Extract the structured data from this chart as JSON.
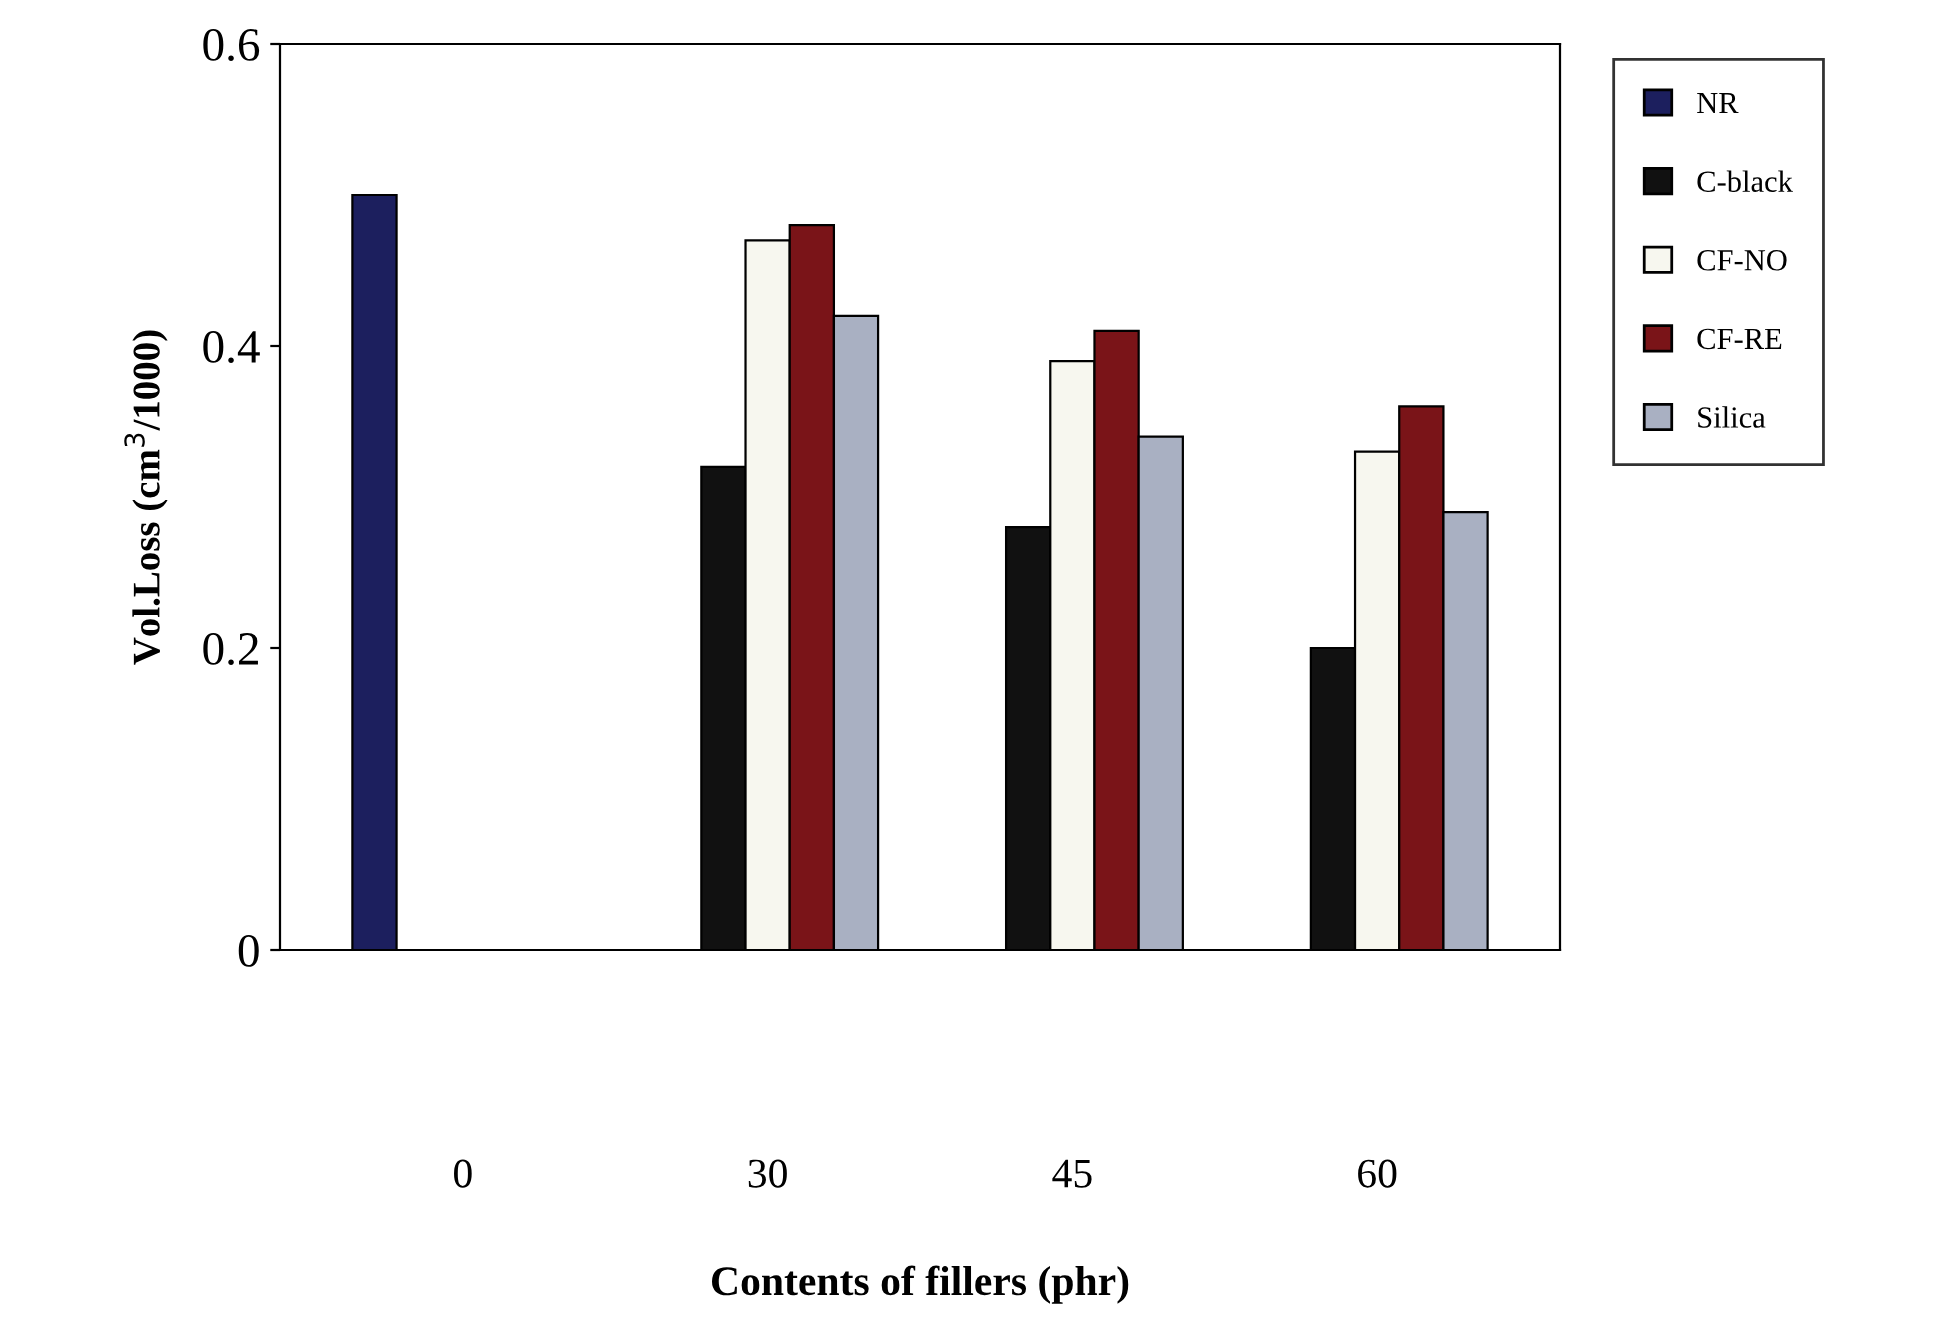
{
  "chart_data": {
    "type": "bar",
    "xlabel": "Contents of fillers (phr)",
    "ylabel": "Vol.Loss (cm$^{3}$/1000)",
    "categories": [
      "0",
      "30",
      "45",
      "60"
    ],
    "ylim": [
      0,
      0.6
    ],
    "yticks": [
      0,
      0.2,
      0.4,
      0.6
    ],
    "grid": false,
    "legend": "right",
    "series": [
      {
        "name": "NR",
        "color": "#1c1f5e",
        "values": [
          0.5,
          null,
          null,
          null
        ]
      },
      {
        "name": "C-black",
        "color": "#111111",
        "values": [
          null,
          0.32,
          0.28,
          0.2
        ]
      },
      {
        "name": "CF-NO",
        "color": "#f7f7ef",
        "values": [
          null,
          0.47,
          0.39,
          0.33
        ]
      },
      {
        "name": "CF-RE",
        "color": "#7a1418",
        "values": [
          null,
          0.48,
          0.41,
          0.36
        ]
      },
      {
        "name": "Silica",
        "color": "#a9b0c2",
        "values": [
          null,
          0.42,
          0.34,
          0.29
        ]
      }
    ]
  }
}
